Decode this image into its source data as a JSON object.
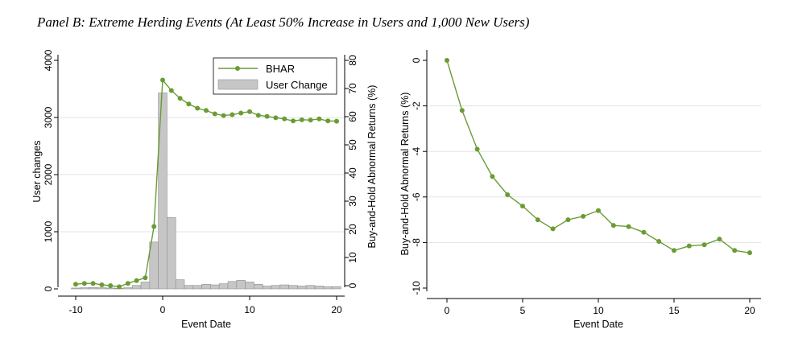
{
  "title": "Panel B: Extreme Herding Events (At Least 50% Increase in Users and 1,000 New Users)",
  "colors": {
    "bhar": "#6a9c35",
    "bars": "#c6c6c6",
    "bar_edge": "#8f8f8f"
  },
  "chart_data": [
    {
      "type": "bar+line",
      "xlabel": "Event Date",
      "ylabel_left": "User changes",
      "ylabel_right": "Buy-and-Hold Abnormal Returns (%)",
      "xlim": [
        -10,
        20
      ],
      "ylim_left": [
        0,
        4000
      ],
      "ylim_right": [
        0,
        80
      ],
      "xticks": [
        "-10",
        "0",
        "10",
        "20"
      ],
      "yticks_left": [
        "0",
        "1000",
        "2000",
        "3000",
        "4000"
      ],
      "yticks_right": [
        "0",
        "10",
        "20",
        "30",
        "40",
        "50",
        "60",
        "70",
        "80"
      ],
      "legend": [
        "BHAR",
        "User Change"
      ],
      "legend_position": "top-right",
      "x": [
        -10,
        -9,
        -8,
        -7,
        -6,
        -5,
        -4,
        -3,
        -2,
        -1,
        0,
        1,
        2,
        3,
        4,
        5,
        6,
        7,
        8,
        9,
        10,
        11,
        12,
        13,
        14,
        15,
        16,
        17,
        18,
        19,
        20
      ],
      "series": [
        {
          "name": "User Change",
          "kind": "bar",
          "axis": "left",
          "values": [
            15,
            20,
            25,
            20,
            15,
            10,
            20,
            60,
            120,
            820,
            3430,
            1250,
            160,
            60,
            60,
            80,
            70,
            90,
            130,
            150,
            120,
            80,
            50,
            60,
            70,
            60,
            50,
            60,
            50,
            40,
            40
          ]
        },
        {
          "name": "BHAR",
          "kind": "line",
          "axis": "right",
          "values": [
            0.5,
            0.8,
            0.8,
            0.3,
            0.0,
            -0.4,
            0.8,
            1.8,
            2.8,
            21.0,
            73.0,
            69.3,
            66.5,
            64.5,
            63.0,
            62.2,
            61.0,
            60.4,
            60.7,
            61.3,
            61.8,
            60.5,
            60.1,
            59.6,
            59.2,
            58.5,
            58.9,
            58.8,
            59.2,
            58.5,
            58.4
          ]
        }
      ]
    },
    {
      "type": "line",
      "xlabel": "Event Date",
      "ylabel": "Buy-and-Hold Abnormal Returns (%)",
      "xlim": [
        0,
        20
      ],
      "ylim": [
        -10,
        0
      ],
      "xticks": [
        "0",
        "5",
        "10",
        "15",
        "20"
      ],
      "yticks": [
        "0",
        "-2",
        "-4",
        "-6",
        "-8",
        "-10"
      ],
      "x": [
        0,
        1,
        2,
        3,
        4,
        5,
        6,
        7,
        8,
        9,
        10,
        11,
        12,
        13,
        14,
        15,
        16,
        17,
        18,
        19,
        20
      ],
      "series": [
        {
          "name": "BHAR",
          "values": [
            0.0,
            -2.2,
            -3.9,
            -5.1,
            -5.9,
            -6.4,
            -7.0,
            -7.4,
            -7.0,
            -6.85,
            -6.6,
            -7.25,
            -7.3,
            -7.55,
            -7.95,
            -8.35,
            -8.15,
            -8.1,
            -7.85,
            -8.35,
            -8.45
          ]
        }
      ]
    }
  ]
}
